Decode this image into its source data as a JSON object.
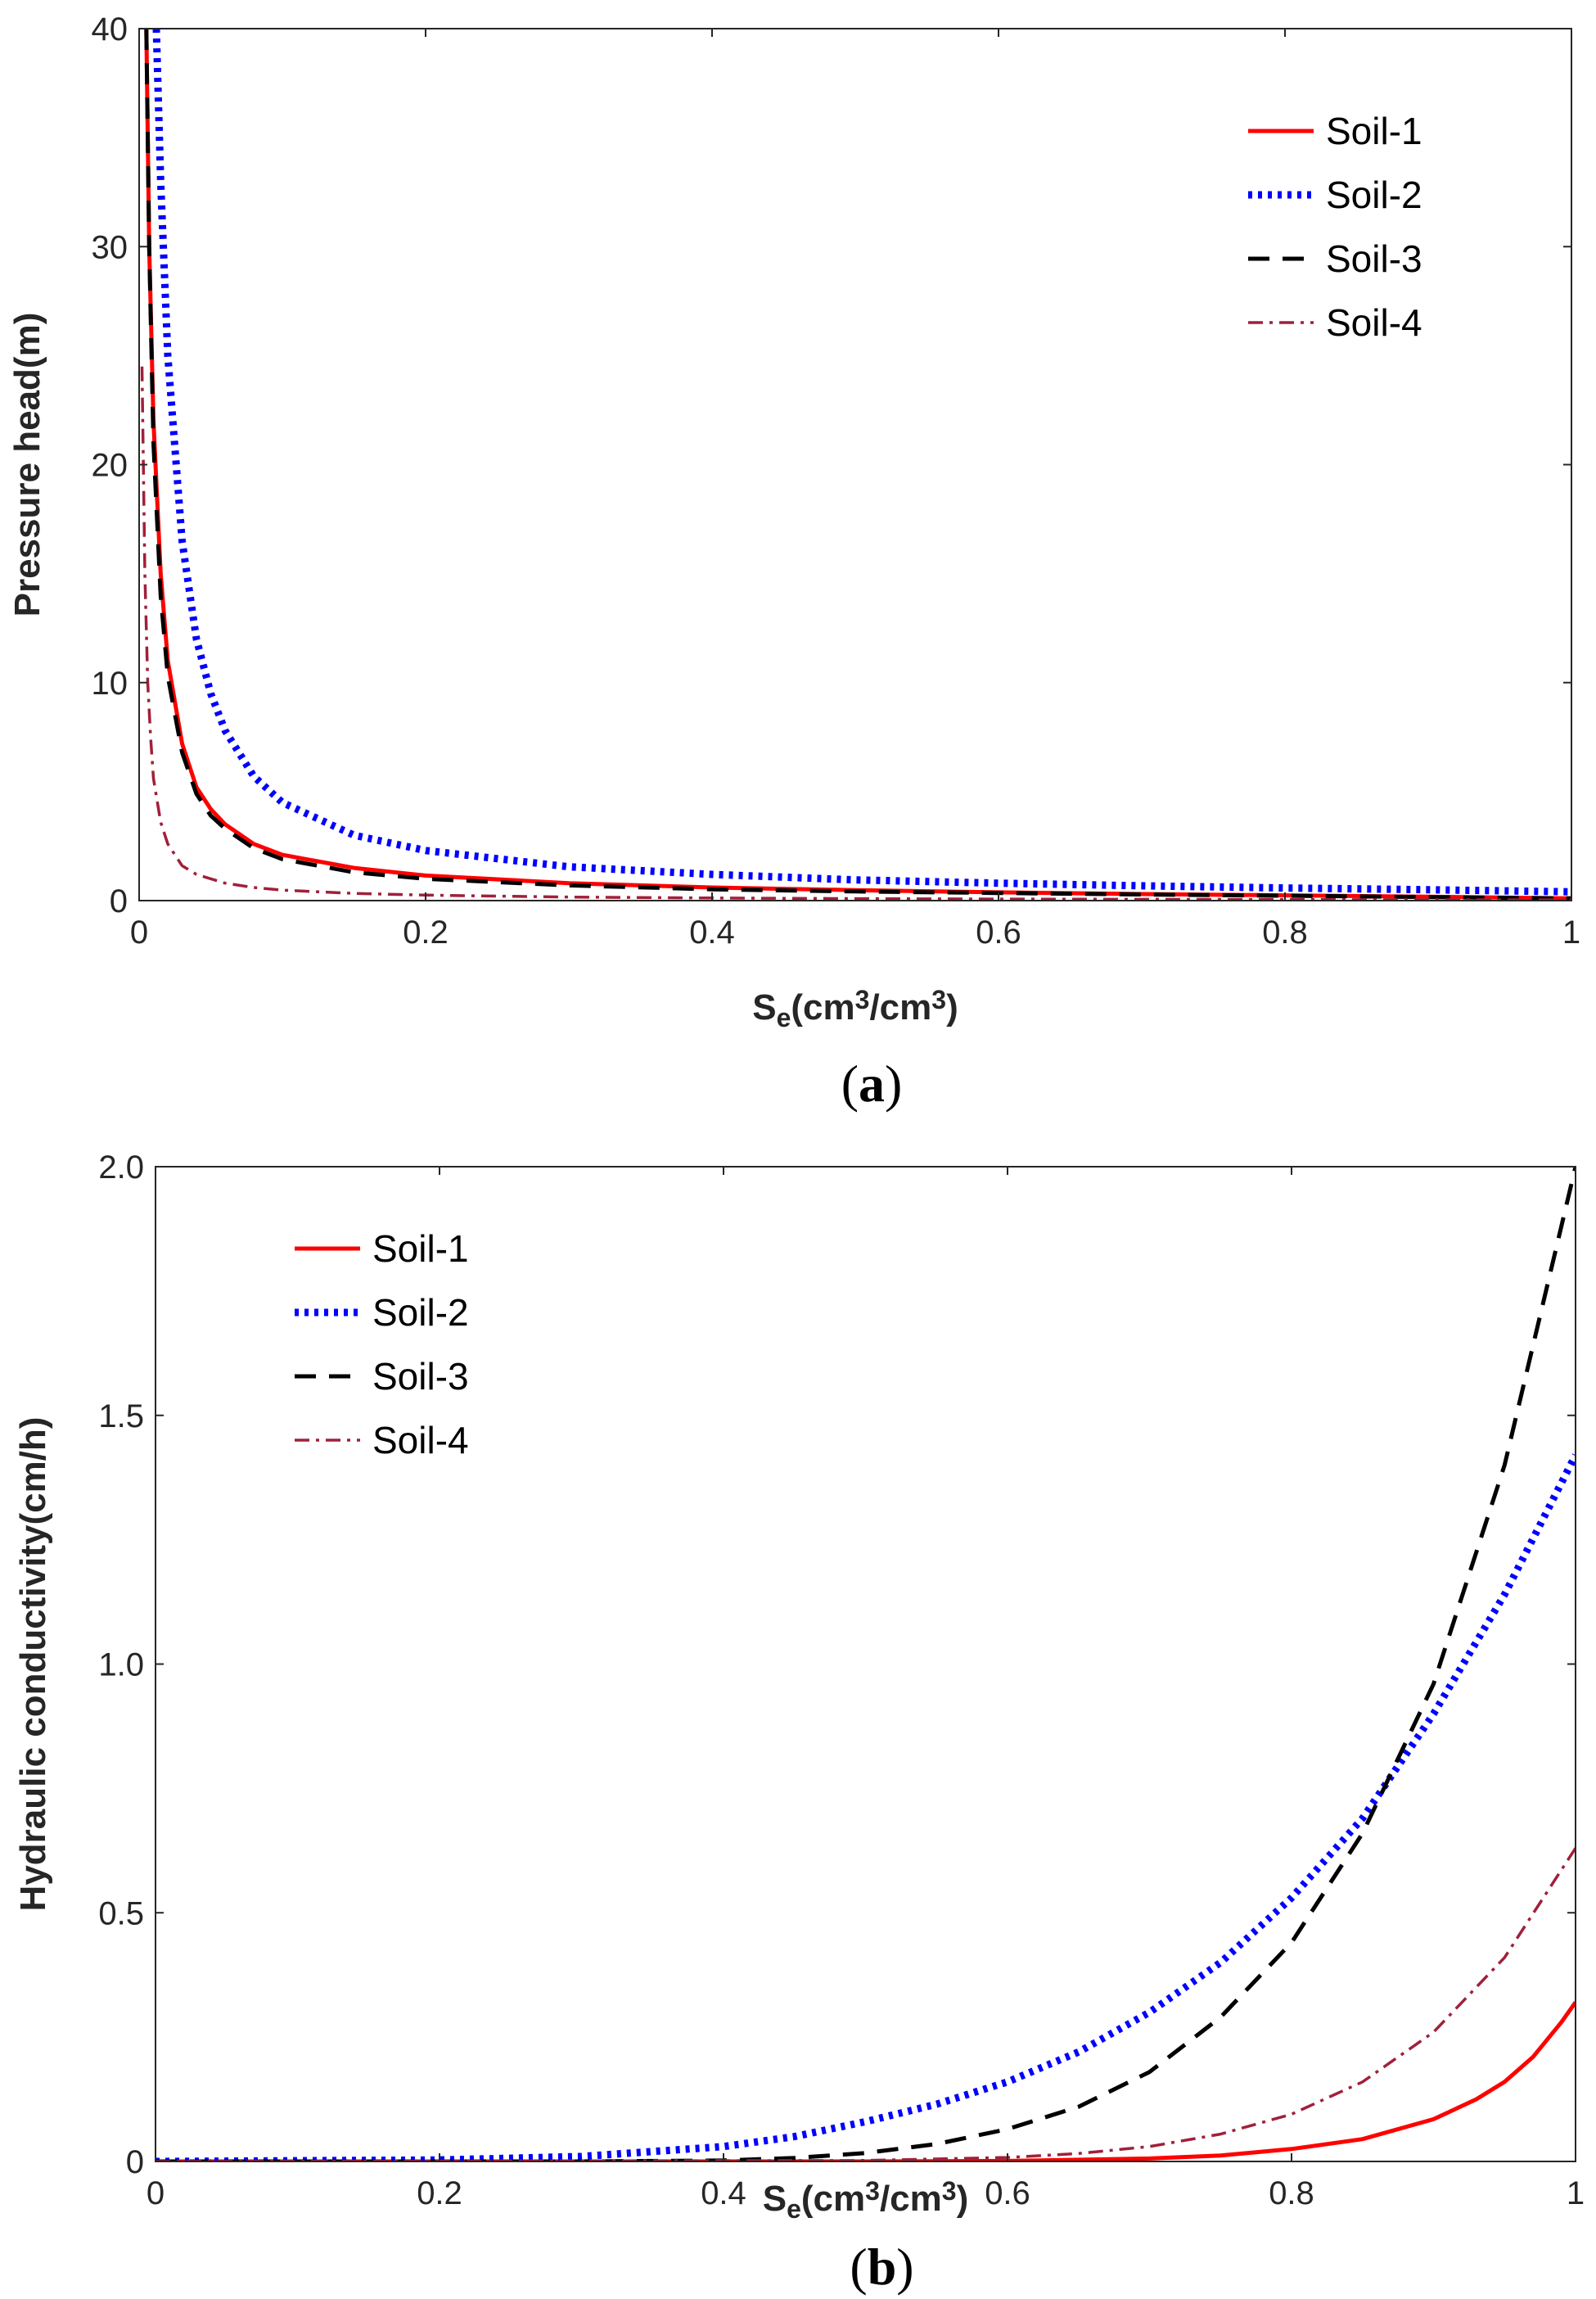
{
  "chart_data": [
    {
      "panel": "a",
      "panel_label": "a",
      "type": "line",
      "xlabel": "S_e(cm^3/cm^3)",
      "ylabel": "Pressure head(m)",
      "xlim": [
        0,
        1
      ],
      "ylim": [
        0,
        40
      ],
      "xticks": [
        "0",
        "0.2",
        "0.4",
        "0.6",
        "0.8",
        "1"
      ],
      "yticks": [
        "0",
        "10",
        "20",
        "30",
        "40"
      ],
      "legend_position": "top-right",
      "series": [
        {
          "name": "Soil-1",
          "color": "#ff0000",
          "style": "solid",
          "x": [
            0.005,
            0.007,
            0.01,
            0.015,
            0.02,
            0.03,
            0.04,
            0.05,
            0.06,
            0.08,
            0.1,
            0.15,
            0.2,
            0.3,
            0.4,
            0.5,
            0.6,
            0.7,
            0.8,
            0.9,
            1.0
          ],
          "y": [
            40,
            30,
            22,
            15,
            11,
            7.2,
            5.2,
            4.2,
            3.5,
            2.6,
            2.1,
            1.5,
            1.15,
            0.8,
            0.6,
            0.48,
            0.38,
            0.3,
            0.24,
            0.18,
            0.1
          ]
        },
        {
          "name": "Soil-2",
          "color": "#0000ff",
          "style": "dotted",
          "x": [
            0.012,
            0.015,
            0.02,
            0.03,
            0.04,
            0.05,
            0.06,
            0.08,
            0.1,
            0.15,
            0.2,
            0.3,
            0.4,
            0.5,
            0.6,
            0.7,
            0.8,
            0.9,
            1.0
          ],
          "y": [
            40,
            33,
            25,
            16.5,
            12,
            9.5,
            7.8,
            5.7,
            4.5,
            3.0,
            2.3,
            1.55,
            1.2,
            0.95,
            0.8,
            0.68,
            0.58,
            0.5,
            0.4
          ]
        },
        {
          "name": "Soil-3",
          "color": "#000000",
          "style": "dashed",
          "x": [
            0.005,
            0.007,
            0.01,
            0.015,
            0.02,
            0.03,
            0.04,
            0.05,
            0.06,
            0.08,
            0.1,
            0.15,
            0.2,
            0.3,
            0.4,
            0.5,
            0.6,
            0.7,
            0.8,
            0.9,
            1.0
          ],
          "y": [
            40,
            30,
            21,
            14,
            10.3,
            6.8,
            4.9,
            3.9,
            3.3,
            2.4,
            1.9,
            1.3,
            1.0,
            0.7,
            0.52,
            0.42,
            0.35,
            0.28,
            0.22,
            0.16,
            0.1
          ]
        },
        {
          "name": "Soil-4",
          "color": "#a0203a",
          "style": "dashdot",
          "x": [
            0.002,
            0.004,
            0.006,
            0.008,
            0.01,
            0.015,
            0.02,
            0.03,
            0.04,
            0.06,
            0.08,
            0.1,
            0.15,
            0.2,
            0.3,
            0.4,
            0.5,
            0.6,
            0.8,
            1.0
          ],
          "y": [
            24.5,
            15,
            10,
            7.5,
            5.6,
            3.6,
            2.6,
            1.6,
            1.2,
            0.8,
            0.6,
            0.48,
            0.33,
            0.25,
            0.16,
            0.12,
            0.09,
            0.07,
            0.05,
            0.03
          ]
        }
      ]
    },
    {
      "panel": "b",
      "panel_label": "b",
      "type": "line",
      "xlabel": "S_e(cm^3/cm^3)",
      "ylabel": "Hydraulic conductivity(cm/h)",
      "xlim": [
        0,
        1
      ],
      "ylim": [
        0,
        2
      ],
      "xticks": [
        "0",
        "0.2",
        "0.4",
        "0.6",
        "0.8",
        "1"
      ],
      "yticks": [
        "0",
        "0.5",
        "1.0",
        "1.5",
        "2.0"
      ],
      "legend_position": "top-left",
      "series": [
        {
          "name": "Soil-1",
          "color": "#ff0000",
          "style": "solid",
          "x": [
            0,
            0.5,
            0.6,
            0.7,
            0.75,
            0.8,
            0.85,
            0.9,
            0.93,
            0.95,
            0.97,
            0.99,
            1.0
          ],
          "y": [
            0,
            0,
            0.001,
            0.006,
            0.012,
            0.025,
            0.045,
            0.085,
            0.125,
            0.16,
            0.21,
            0.28,
            0.32
          ]
        },
        {
          "name": "Soil-2",
          "color": "#0000ff",
          "style": "dotted",
          "x": [
            0,
            0.2,
            0.3,
            0.4,
            0.45,
            0.5,
            0.55,
            0.6,
            0.65,
            0.7,
            0.75,
            0.8,
            0.85,
            0.9,
            0.95,
            1.0
          ],
          "y": [
            0,
            0.003,
            0.01,
            0.03,
            0.05,
            0.08,
            0.115,
            0.16,
            0.22,
            0.3,
            0.4,
            0.53,
            0.69,
            0.9,
            1.14,
            1.42
          ]
        },
        {
          "name": "Soil-3",
          "color": "#000000",
          "style": "dashed",
          "x": [
            0,
            0.3,
            0.4,
            0.45,
            0.5,
            0.55,
            0.6,
            0.65,
            0.7,
            0.75,
            0.8,
            0.85,
            0.9,
            0.95,
            1.0
          ],
          "y": [
            0,
            0,
            0.002,
            0.007,
            0.017,
            0.035,
            0.065,
            0.11,
            0.18,
            0.29,
            0.44,
            0.66,
            0.96,
            1.4,
            2.0
          ]
        },
        {
          "name": "Soil-4",
          "color": "#a0203a",
          "style": "dashdot",
          "x": [
            0,
            0.5,
            0.6,
            0.65,
            0.7,
            0.75,
            0.8,
            0.85,
            0.9,
            0.95,
            1.0
          ],
          "y": [
            0,
            0.002,
            0.008,
            0.016,
            0.03,
            0.055,
            0.095,
            0.16,
            0.26,
            0.41,
            0.63
          ]
        }
      ]
    }
  ]
}
